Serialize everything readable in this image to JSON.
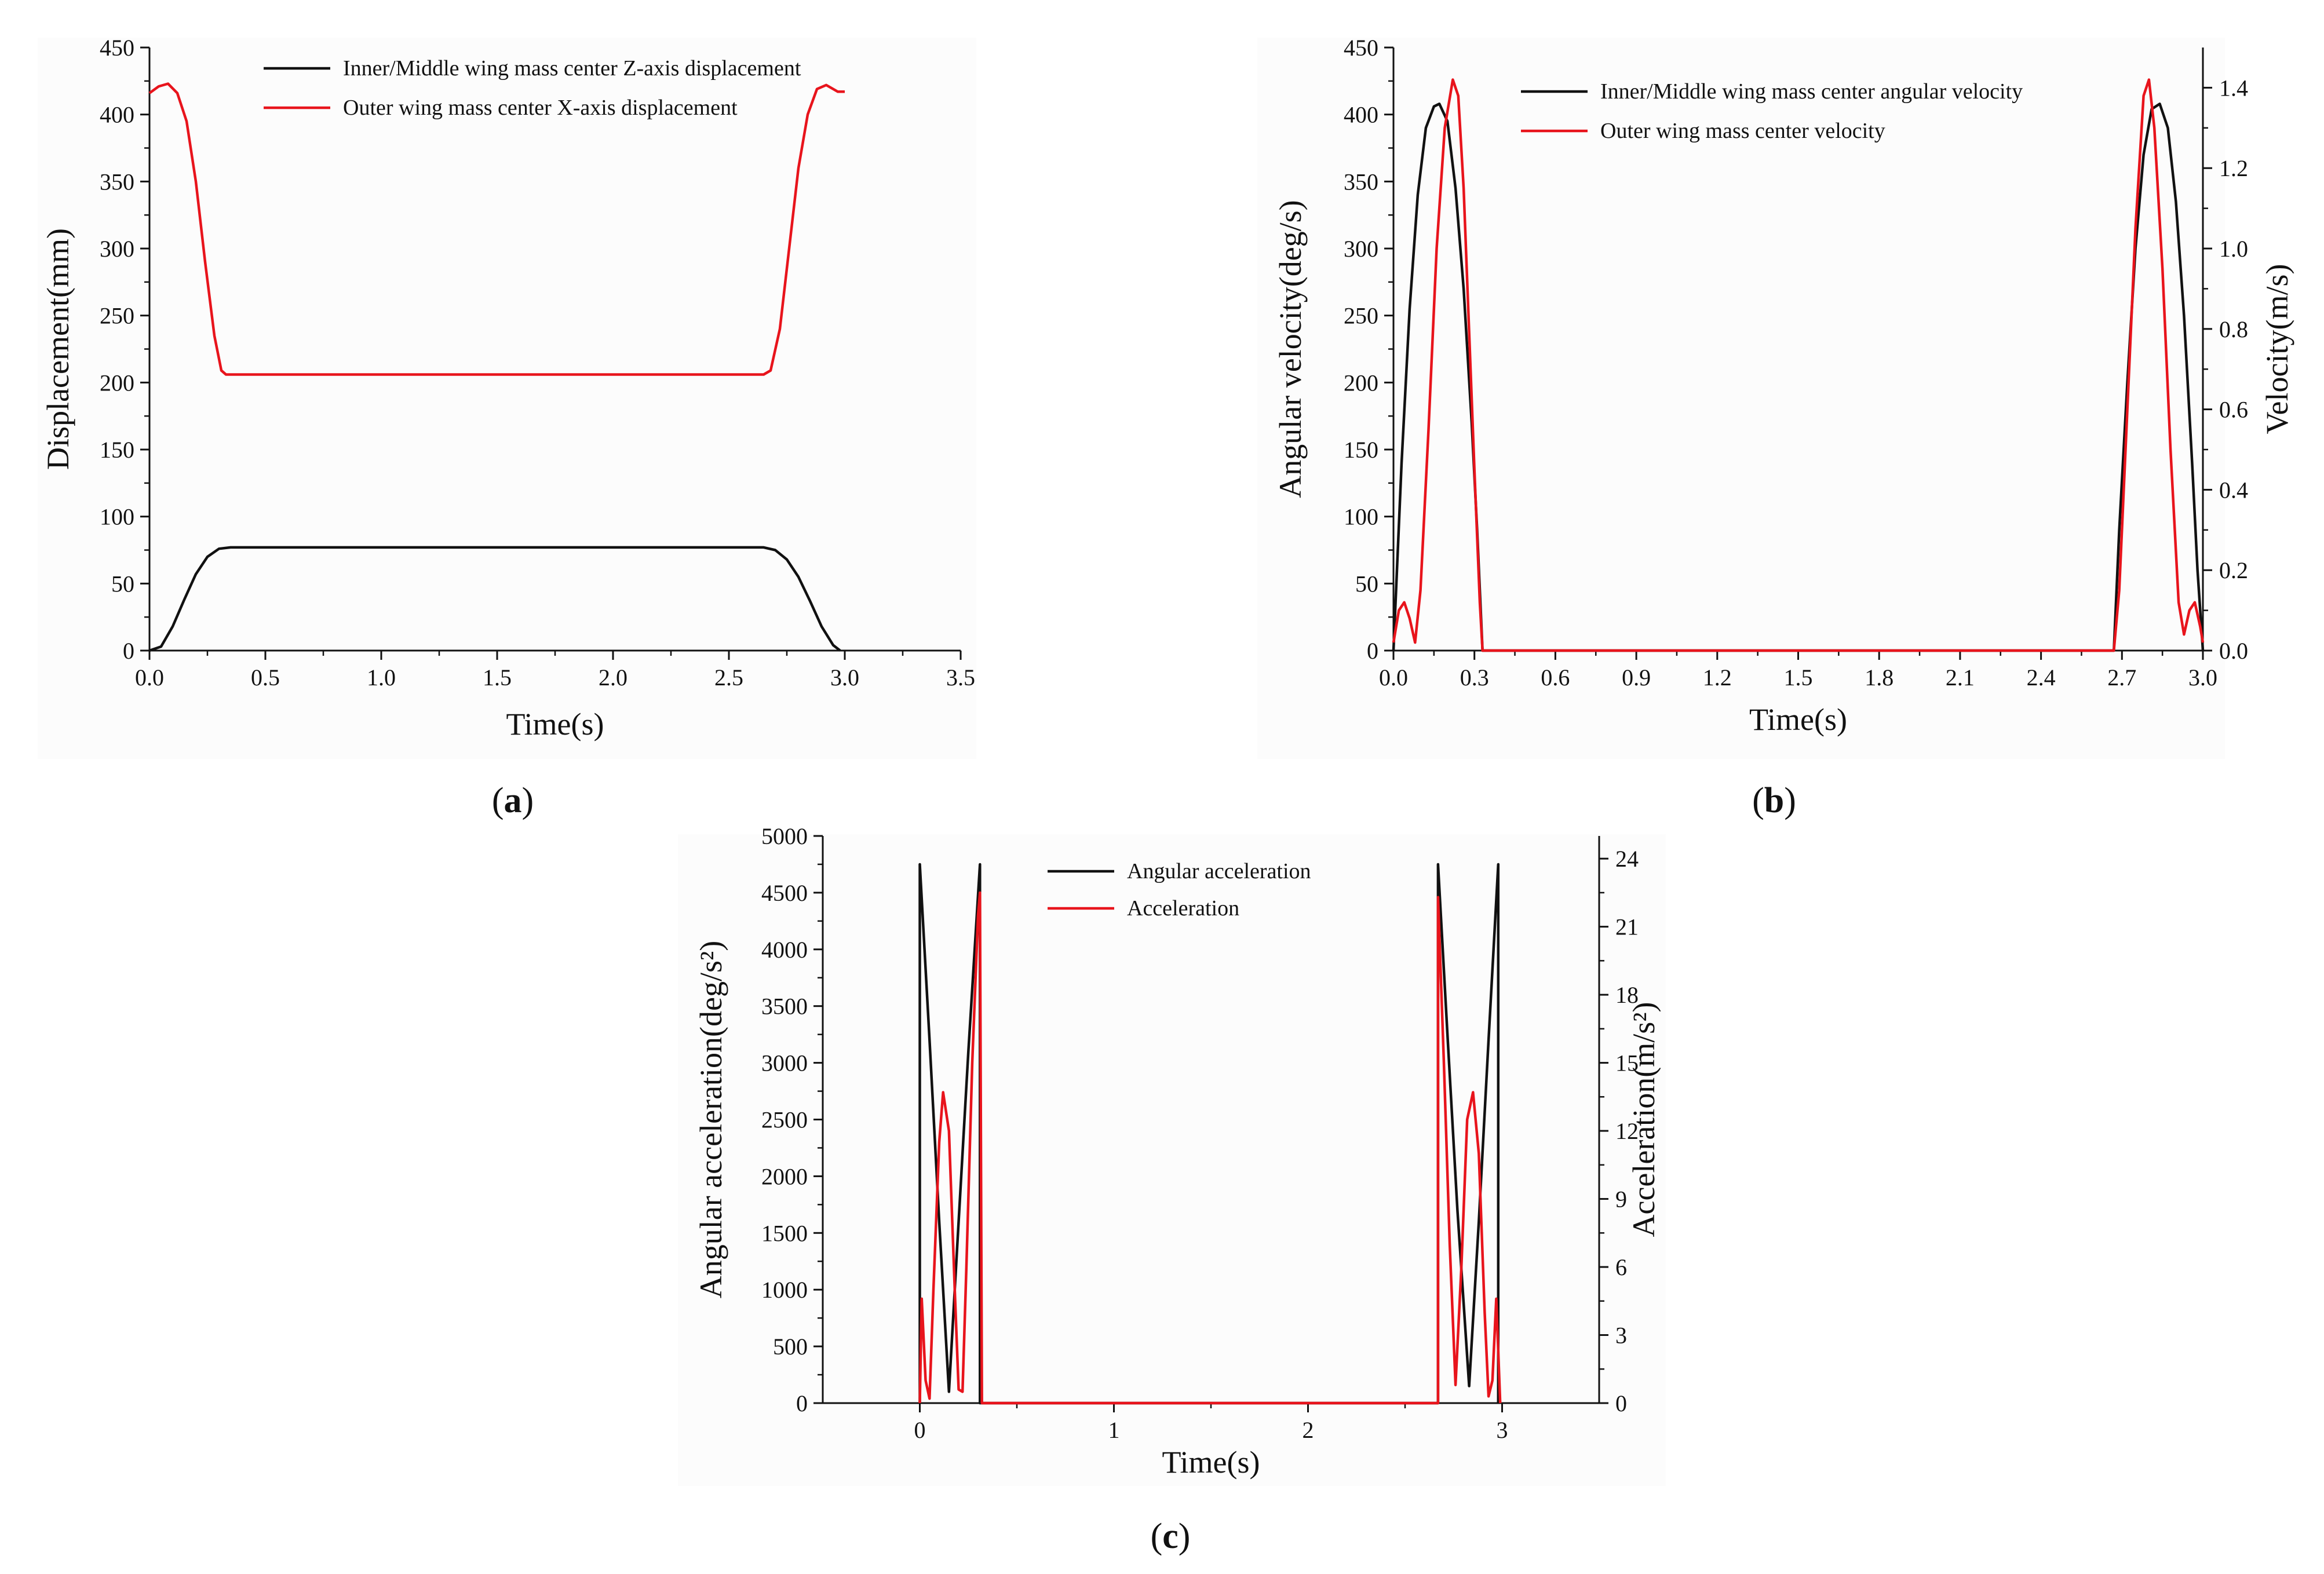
{
  "chart_data": [
    {
      "panel": "(a)",
      "panel_letter": "a",
      "type": "line",
      "xlabel": "Time(s)",
      "ylabel": "Displacement(mm)",
      "xlim": [
        0,
        3.5
      ],
      "ylim": [
        0,
        450
      ],
      "xticks": [
        "0.0",
        "0.5",
        "1.0",
        "1.5",
        "2.0",
        "2.5",
        "3.0",
        "3.5"
      ],
      "yticks": [
        "0",
        "50",
        "100",
        "150",
        "200",
        "250",
        "300",
        "350",
        "400",
        "450"
      ],
      "legend_position": "top-right",
      "series": [
        {
          "name": "Inner/Middle wing mass center Z-axis displacement",
          "color": "#111111",
          "points": [
            [
              0.0,
              0
            ],
            [
              0.05,
              3
            ],
            [
              0.1,
              18
            ],
            [
              0.15,
              38
            ],
            [
              0.2,
              57
            ],
            [
              0.25,
              70
            ],
            [
              0.3,
              76
            ],
            [
              0.35,
              77
            ],
            [
              2.65,
              77
            ],
            [
              2.7,
              75
            ],
            [
              2.75,
              68
            ],
            [
              2.8,
              55
            ],
            [
              2.85,
              37
            ],
            [
              2.9,
              18
            ],
            [
              2.95,
              4
            ],
            [
              2.98,
              0
            ]
          ]
        },
        {
          "name": "Outer  wing mass center X-axis displacement",
          "color": "#e8141c",
          "points": [
            [
              0.0,
              416
            ],
            [
              0.04,
              421
            ],
            [
              0.08,
              423
            ],
            [
              0.12,
              416
            ],
            [
              0.16,
              395
            ],
            [
              0.2,
              350
            ],
            [
              0.24,
              290
            ],
            [
              0.28,
              235
            ],
            [
              0.31,
              209
            ],
            [
              0.33,
              206
            ],
            [
              2.65,
              206
            ],
            [
              2.68,
              209
            ],
            [
              2.72,
              240
            ],
            [
              2.76,
              300
            ],
            [
              2.8,
              360
            ],
            [
              2.84,
              400
            ],
            [
              2.88,
              419
            ],
            [
              2.92,
              422
            ],
            [
              2.95,
              419
            ],
            [
              2.97,
              417
            ],
            [
              3.0,
              417
            ]
          ]
        }
      ]
    },
    {
      "panel": "(b)",
      "panel_letter": "b",
      "type": "line",
      "xlabel": "Time(s)",
      "ylabel": "Angular velocity(deg/s)",
      "y2label": "Velocity(m/s)",
      "xlim": [
        0,
        3.0
      ],
      "ylim": [
        0,
        450
      ],
      "y2lim": [
        0,
        1.5
      ],
      "xticks": [
        "0.0",
        "0.3",
        "0.6",
        "0.9",
        "1.2",
        "1.5",
        "1.8",
        "2.1",
        "2.4",
        "2.7",
        "3.0"
      ],
      "yticks": [
        "0",
        "50",
        "100",
        "150",
        "200",
        "250",
        "300",
        "350",
        "400",
        "450"
      ],
      "y2ticks": [
        "0.0",
        "0.2",
        "0.4",
        "0.6",
        "0.8",
        "1.0",
        "1.2",
        "1.4"
      ],
      "legend_position": "top-right",
      "series": [
        {
          "name": "Inner/Middle wing mass center angular velocity",
          "color": "#111111",
          "axis": "left",
          "points": [
            [
              0.0,
              0
            ],
            [
              0.03,
              140
            ],
            [
              0.06,
              255
            ],
            [
              0.09,
              340
            ],
            [
              0.12,
              390
            ],
            [
              0.15,
              406
            ],
            [
              0.17,
              408
            ],
            [
              0.2,
              395
            ],
            [
              0.23,
              345
            ],
            [
              0.26,
              270
            ],
            [
              0.29,
              170
            ],
            [
              0.31,
              90
            ],
            [
              0.33,
              0
            ],
            [
              2.67,
              0
            ],
            [
              2.69,
              90
            ],
            [
              2.72,
              200
            ],
            [
              2.75,
              300
            ],
            [
              2.78,
              370
            ],
            [
              2.81,
              404
            ],
            [
              2.84,
              408
            ],
            [
              2.87,
              390
            ],
            [
              2.9,
              335
            ],
            [
              2.93,
              250
            ],
            [
              2.96,
              140
            ],
            [
              2.98,
              60
            ],
            [
              3.0,
              0
            ]
          ]
        },
        {
          "name": "Outer wing mass center velocity",
          "color": "#e8141c",
          "axis": "right",
          "points": [
            [
              0.0,
              0.02
            ],
            [
              0.02,
              0.1
            ],
            [
              0.04,
              0.12
            ],
            [
              0.06,
              0.08
            ],
            [
              0.08,
              0.02
            ],
            [
              0.1,
              0.15
            ],
            [
              0.13,
              0.55
            ],
            [
              0.16,
              1.0
            ],
            [
              0.19,
              1.3
            ],
            [
              0.22,
              1.42
            ],
            [
              0.24,
              1.38
            ],
            [
              0.26,
              1.15
            ],
            [
              0.28,
              0.8
            ],
            [
              0.3,
              0.45
            ],
            [
              0.32,
              0.12
            ],
            [
              0.33,
              0.0
            ],
            [
              2.67,
              0.0
            ],
            [
              2.69,
              0.15
            ],
            [
              2.72,
              0.6
            ],
            [
              2.75,
              1.05
            ],
            [
              2.78,
              1.38
            ],
            [
              2.8,
              1.42
            ],
            [
              2.82,
              1.3
            ],
            [
              2.85,
              0.95
            ],
            [
              2.88,
              0.5
            ],
            [
              2.91,
              0.12
            ],
            [
              2.93,
              0.04
            ],
            [
              2.95,
              0.1
            ],
            [
              2.97,
              0.12
            ],
            [
              2.99,
              0.06
            ],
            [
              3.0,
              0.02
            ]
          ]
        }
      ]
    },
    {
      "panel": "(c)",
      "panel_letter": "c",
      "type": "line",
      "xlabel": "Time(s)",
      "ylabel": "Angular acceleration(deg/s²)",
      "y2label": "Acceleration(m/s²)",
      "xlim": [
        -0.5,
        3.5
      ],
      "ylim": [
        0,
        5000
      ],
      "y2lim": [
        0,
        25
      ],
      "xticks": [
        "0",
        "1",
        "2",
        "3"
      ],
      "yticks": [
        "0",
        "500",
        "1000",
        "1500",
        "2000",
        "2500",
        "3000",
        "3500",
        "4000",
        "4500",
        "5000"
      ],
      "y2ticks": [
        "0",
        "3",
        "6",
        "9",
        "12",
        "15",
        "18",
        "21",
        "24"
      ],
      "legend_position": "top-right",
      "series": [
        {
          "name": "Angular acceleration",
          "color": "#111111",
          "axis": "left",
          "points": [
            [
              0.0,
              0
            ],
            [
              0.0,
              4750
            ],
            [
              0.05,
              3200
            ],
            [
              0.1,
              1600
            ],
            [
              0.15,
              100
            ],
            [
              0.2,
              1600
            ],
            [
              0.25,
              3100
            ],
            [
              0.31,
              4750
            ],
            [
              0.31,
              0
            ],
            [
              2.67,
              0
            ],
            [
              2.67,
              4750
            ],
            [
              2.72,
              3200
            ],
            [
              2.77,
              1700
            ],
            [
              2.83,
              150
            ],
            [
              2.88,
              1600
            ],
            [
              2.93,
              3200
            ],
            [
              2.98,
              4750
            ],
            [
              2.98,
              0
            ]
          ]
        },
        {
          "name": "Acceleration",
          "color": "#e8141c",
          "axis": "right",
          "points": [
            [
              0.0,
              0
            ],
            [
              0.01,
              4.6
            ],
            [
              0.03,
              1.0
            ],
            [
              0.05,
              0.2
            ],
            [
              0.07,
              5.0
            ],
            [
              0.1,
              11.5
            ],
            [
              0.12,
              13.7
            ],
            [
              0.15,
              12.0
            ],
            [
              0.18,
              5.0
            ],
            [
              0.2,
              0.6
            ],
            [
              0.22,
              0.5
            ],
            [
              0.24,
              6.0
            ],
            [
              0.27,
              15.0
            ],
            [
              0.3,
              21.5
            ],
            [
              0.31,
              22.5
            ],
            [
              0.32,
              0
            ],
            [
              2.67,
              0
            ],
            [
              2.67,
              22.3
            ],
            [
              2.7,
              15.0
            ],
            [
              2.73,
              7.0
            ],
            [
              2.76,
              0.8
            ],
            [
              2.79,
              6.0
            ],
            [
              2.82,
              12.5
            ],
            [
              2.85,
              13.7
            ],
            [
              2.88,
              11.0
            ],
            [
              2.91,
              4.0
            ],
            [
              2.93,
              0.3
            ],
            [
              2.95,
              1.0
            ],
            [
              2.97,
              4.6
            ],
            [
              2.99,
              0
            ]
          ]
        }
      ]
    }
  ]
}
